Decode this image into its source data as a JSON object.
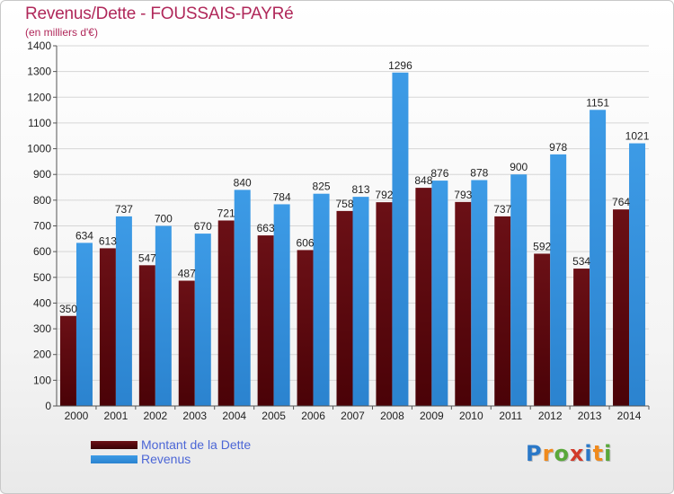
{
  "chart_data": {
    "type": "bar",
    "title": "Revenus/Dette - FOUSSAIS-PAYRé",
    "subtitle": "(en milliers d'€)",
    "categories": [
      "2000",
      "2001",
      "2002",
      "2003",
      "2004",
      "2005",
      "2006",
      "2007",
      "2008",
      "2009",
      "2010",
      "2011",
      "2012",
      "2013",
      "2014"
    ],
    "series": [
      {
        "name": "Montant de la Dette",
        "color": "#6b1016",
        "values": [
          350,
          613,
          547,
          487,
          721,
          663,
          606,
          758,
          792,
          848,
          793,
          737,
          592,
          534,
          764
        ]
      },
      {
        "name": "Revenus",
        "color": "#3d9be6",
        "values": [
          634,
          737,
          700,
          670,
          840,
          784,
          825,
          813,
          1296,
          876,
          878,
          900,
          978,
          1151,
          1021
        ]
      }
    ],
    "yticks": [
      0,
      100,
      200,
      300,
      400,
      500,
      600,
      700,
      800,
      900,
      1000,
      1100,
      1200,
      1300,
      1400
    ],
    "ylim": [
      0,
      1400
    ],
    "xlabel": "",
    "ylabel": "",
    "grid": true,
    "legend_position": "bottom-left"
  },
  "logo": {
    "letters": [
      "P",
      "r",
      "o",
      "x",
      "i",
      "t",
      "i"
    ],
    "colors": [
      "#2a78c8",
      "#f08a1c",
      "#59a83a",
      "#d23a2a",
      "#2a78c8",
      "#f08a1c",
      "#59a83a"
    ]
  }
}
